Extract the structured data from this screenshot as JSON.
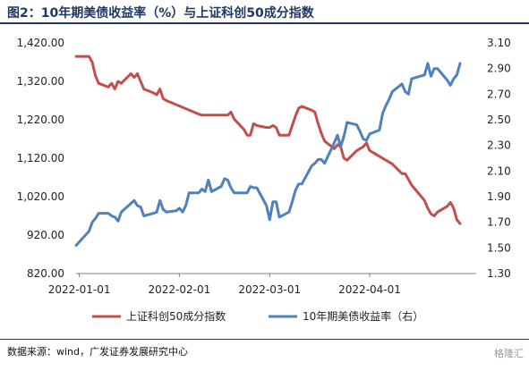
{
  "header": {
    "title": "图2：10年期美债收益率（%）与上证科创50成分指数"
  },
  "chart_data": {
    "type": "line",
    "x_tick_labels": [
      "2022-01-01",
      "2022-02-01",
      "2022-03-01",
      "2022-04-01"
    ],
    "x_ticks": [
      "2022-01-01",
      "2022-02-01",
      "2022-03-01",
      "2022-04-01"
    ],
    "x_range": [
      "2021-12-31",
      "2022-05-04"
    ],
    "left_axis": {
      "range": [
        820,
        1420
      ],
      "tick_labels": [
        "1,420.00",
        "1,320.00",
        "1,220.00",
        "1,120.00",
        "1,020.00",
        "920.00",
        "820.00"
      ],
      "ticks": [
        1420,
        1320,
        1220,
        1120,
        1020,
        920,
        820
      ]
    },
    "right_axis": {
      "range": [
        1.3,
        3.1
      ],
      "tick_labels": [
        "3.10",
        "2.90",
        "2.70",
        "2.50",
        "2.30",
        "2.10",
        "1.90",
        "1.70",
        "1.50",
        "1.30"
      ],
      "ticks": [
        3.1,
        2.9,
        2.7,
        2.5,
        2.3,
        2.1,
        1.9,
        1.7,
        1.5,
        1.3
      ]
    },
    "grid": false,
    "legend_position": "bottom",
    "series": [
      {
        "name": "上证科创50成分指数",
        "axis": "left",
        "color": "#c0504d",
        "x": [
          "2021-12-31",
          "2022-01-04",
          "2022-01-05",
          "2022-01-06",
          "2022-01-07",
          "2022-01-10",
          "2022-01-11",
          "2022-01-12",
          "2022-01-13",
          "2022-01-14",
          "2022-01-17",
          "2022-01-18",
          "2022-01-19",
          "2022-01-20",
          "2022-01-21",
          "2022-01-24",
          "2022-01-25",
          "2022-01-26",
          "2022-01-27",
          "2022-01-28",
          "2022-02-07",
          "2022-02-08",
          "2022-02-09",
          "2022-02-10",
          "2022-02-11",
          "2022-02-14",
          "2022-02-15",
          "2022-02-16",
          "2022-02-17",
          "2022-02-18",
          "2022-02-21",
          "2022-02-22",
          "2022-02-23",
          "2022-02-24",
          "2022-02-25",
          "2022-02-28",
          "2022-03-01",
          "2022-03-02",
          "2022-03-03",
          "2022-03-04",
          "2022-03-07",
          "2022-03-08",
          "2022-03-09",
          "2022-03-10",
          "2022-03-11",
          "2022-03-14",
          "2022-03-15",
          "2022-03-16",
          "2022-03-17",
          "2022-03-18",
          "2022-03-21",
          "2022-03-22",
          "2022-03-23",
          "2022-03-24",
          "2022-03-25",
          "2022-03-28",
          "2022-03-29",
          "2022-03-30",
          "2022-03-31",
          "2022-04-01",
          "2022-04-06",
          "2022-04-07",
          "2022-04-08",
          "2022-04-11",
          "2022-04-12",
          "2022-04-13",
          "2022-04-14",
          "2022-04-15",
          "2022-04-18",
          "2022-04-19",
          "2022-04-20",
          "2022-04-21",
          "2022-04-22",
          "2022-04-25",
          "2022-04-26",
          "2022-04-27",
          "2022-04-28",
          "2022-04-29"
        ],
        "values": [
          1385,
          1385,
          1370,
          1335,
          1315,
          1305,
          1315,
          1300,
          1320,
          1315,
          1340,
          1330,
          1340,
          1320,
          1300,
          1290,
          1285,
          1300,
          1275,
          1270,
          1235,
          1232,
          1232,
          1232,
          1232,
          1232,
          1232,
          1232,
          1240,
          1222,
          1195,
          1180,
          1180,
          1210,
          1205,
          1200,
          1200,
          1205,
          1200,
          1180,
          1180,
          1205,
          1230,
          1250,
          1255,
          1245,
          1240,
          1210,
          1185,
          1165,
          1145,
          1155,
          1150,
          1120,
          1115,
          1140,
          1145,
          1150,
          1160,
          1140,
          1115,
          1110,
          1105,
          1080,
          1080,
          1065,
          1050,
          1040,
          1010,
          990,
          975,
          970,
          980,
          995,
          1005,
          990,
          960,
          950
        ]
      },
      {
        "name": "10年期美债收益率（右）",
        "axis": "right",
        "color": "#4f81bd",
        "x": [
          "2021-12-31",
          "2022-01-04",
          "2022-01-05",
          "2022-01-06",
          "2022-01-07",
          "2022-01-10",
          "2022-01-11",
          "2022-01-12",
          "2022-01-13",
          "2022-01-14",
          "2022-01-18",
          "2022-01-19",
          "2022-01-20",
          "2022-01-21",
          "2022-01-24",
          "2022-01-25",
          "2022-01-26",
          "2022-01-27",
          "2022-01-28",
          "2022-01-31",
          "2022-02-01",
          "2022-02-02",
          "2022-02-03",
          "2022-02-04",
          "2022-02-07",
          "2022-02-08",
          "2022-02-09",
          "2022-02-10",
          "2022-02-11",
          "2022-02-14",
          "2022-02-15",
          "2022-02-16",
          "2022-02-17",
          "2022-02-18",
          "2022-02-22",
          "2022-02-23",
          "2022-02-24",
          "2022-02-25",
          "2022-02-28",
          "2022-03-01",
          "2022-03-02",
          "2022-03-03",
          "2022-03-04",
          "2022-03-07",
          "2022-03-08",
          "2022-03-09",
          "2022-03-10",
          "2022-03-11",
          "2022-03-14",
          "2022-03-15",
          "2022-03-16",
          "2022-03-17",
          "2022-03-18",
          "2022-03-21",
          "2022-03-22",
          "2022-03-23",
          "2022-03-24",
          "2022-03-25",
          "2022-03-28",
          "2022-03-29",
          "2022-03-30",
          "2022-03-31",
          "2022-04-01",
          "2022-04-04",
          "2022-04-05",
          "2022-04-06",
          "2022-04-07",
          "2022-04-08",
          "2022-04-11",
          "2022-04-12",
          "2022-04-13",
          "2022-04-14",
          "2022-04-18",
          "2022-04-19",
          "2022-04-20",
          "2022-04-21",
          "2022-04-22",
          "2022-04-25",
          "2022-04-26",
          "2022-04-27",
          "2022-04-28",
          "2022-04-29"
        ],
        "values": [
          1.52,
          1.63,
          1.7,
          1.73,
          1.77,
          1.77,
          1.75,
          1.74,
          1.71,
          1.78,
          1.87,
          1.83,
          1.82,
          1.75,
          1.77,
          1.78,
          1.87,
          1.8,
          1.78,
          1.79,
          1.81,
          1.78,
          1.83,
          1.93,
          1.93,
          1.96,
          1.94,
          2.03,
          1.94,
          1.98,
          2.04,
          2.03,
          1.97,
          1.93,
          1.93,
          1.98,
          1.97,
          1.97,
          1.83,
          1.72,
          1.86,
          1.86,
          1.74,
          1.78,
          1.86,
          1.95,
          2.0,
          2.0,
          2.14,
          2.16,
          2.19,
          2.19,
          2.16,
          2.32,
          2.38,
          2.29,
          2.37,
          2.48,
          2.46,
          2.41,
          2.35,
          2.34,
          2.39,
          2.42,
          2.55,
          2.61,
          2.66,
          2.72,
          2.78,
          2.72,
          2.7,
          2.82,
          2.85,
          2.94,
          2.84,
          2.9,
          2.9,
          2.81,
          2.77,
          2.82,
          2.85,
          2.94
        ]
      }
    ]
  },
  "footer": {
    "source": "数据来源：wind，广发证券发展研究中心",
    "watermark": "格隆汇"
  }
}
